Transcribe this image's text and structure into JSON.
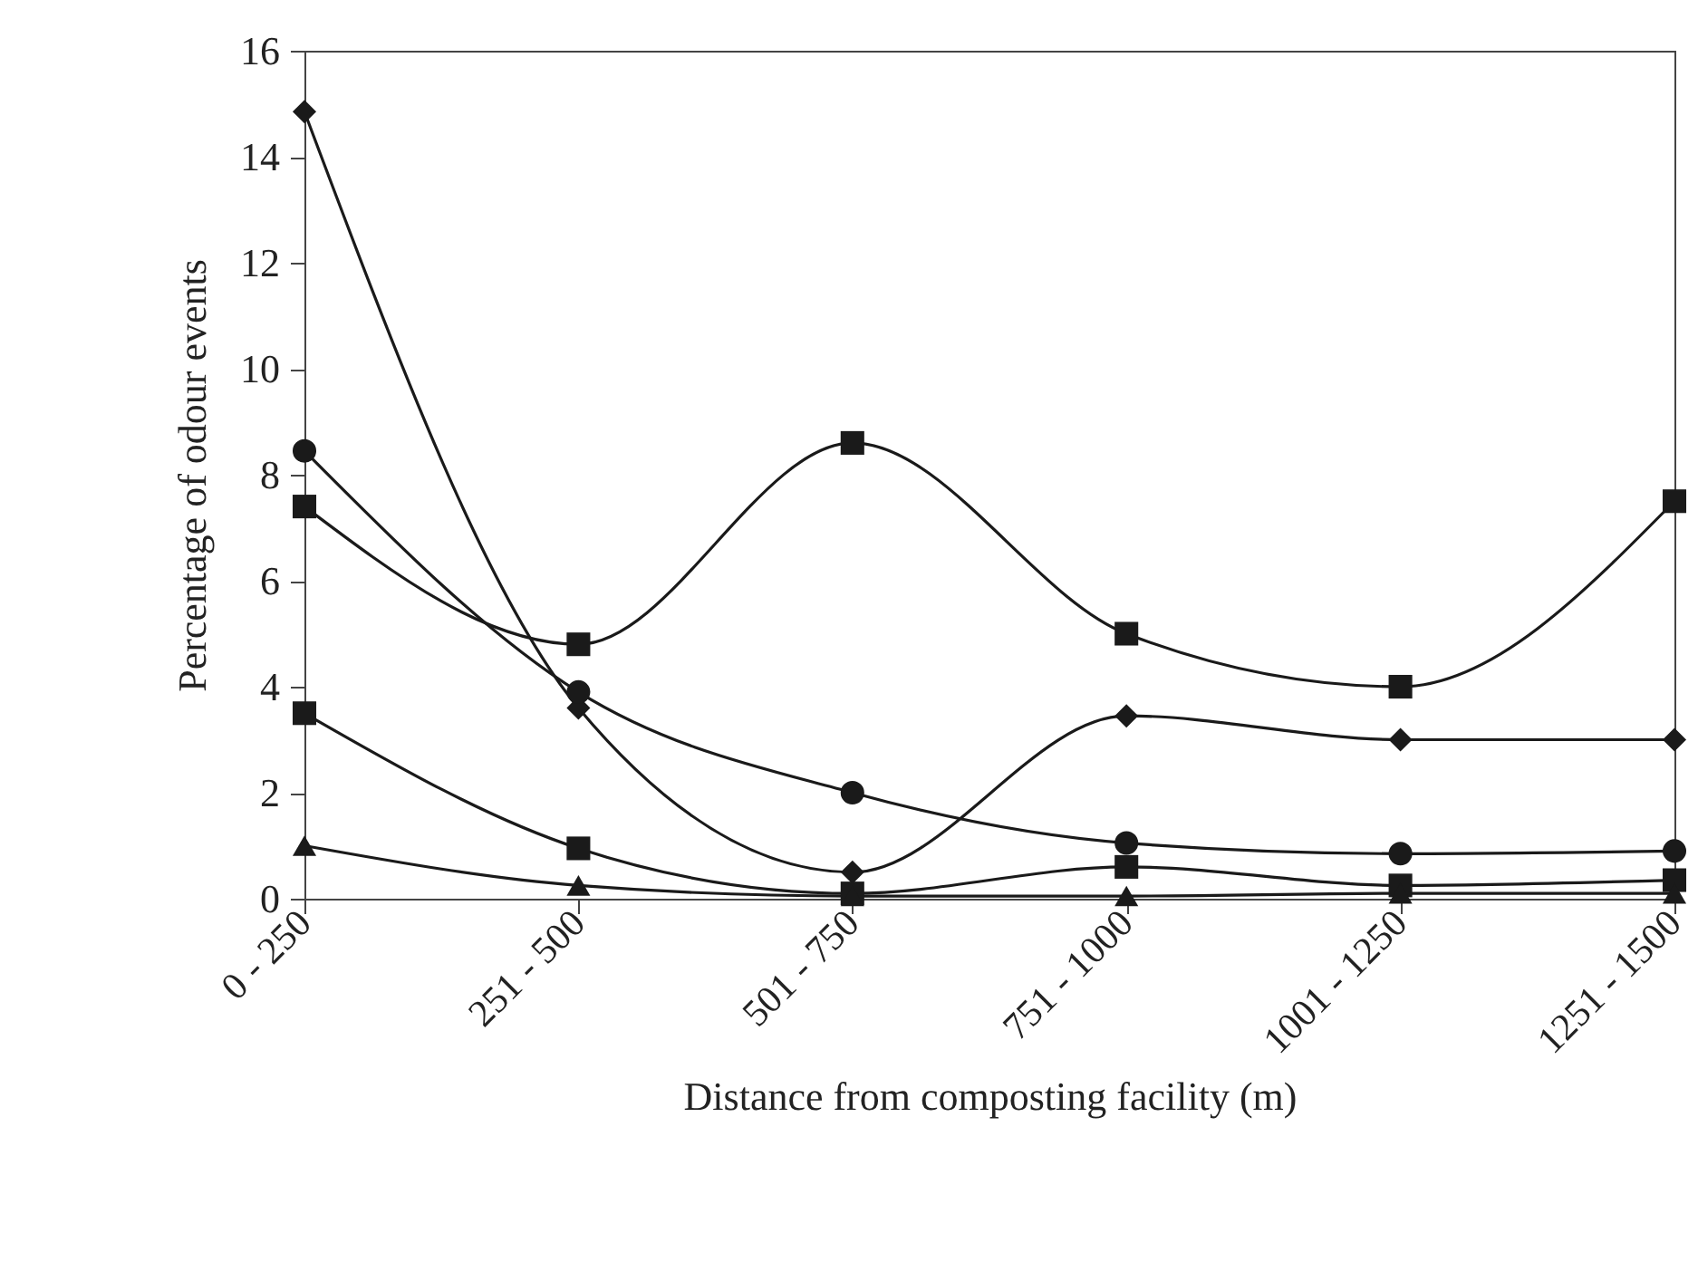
{
  "chart_data": {
    "type": "line",
    "xlabel": "Distance from composting facility (m)",
    "ylabel": "Percentage of odour events",
    "categories": [
      "0 - 250",
      "251 - 500",
      "501 - 750",
      "751 - 1000",
      "1001 - 1250",
      "1251 - 1500"
    ],
    "series": [
      {
        "color": "#1a1a1a",
        "marker": "diamond",
        "values": [
          14.85,
          3.6,
          0.5,
          3.45,
          3.0,
          3.0
        ]
      },
      {
        "color": "#1a1a1a",
        "marker": "square",
        "values": [
          7.4,
          4.8,
          8.6,
          5.0,
          4.0,
          7.5
        ]
      },
      {
        "color": "#1a1a1a",
        "marker": "circle",
        "values": [
          8.45,
          3.9,
          2.0,
          1.05,
          0.85,
          0.9
        ]
      },
      {
        "color": "#1a1a1a",
        "marker": "square",
        "values": [
          3.5,
          0.95,
          0.1,
          0.6,
          0.25,
          0.35
        ]
      },
      {
        "color": "#1a1a1a",
        "marker": "triangle",
        "values": [
          1.0,
          0.25,
          0.05,
          0.05,
          0.1,
          0.1
        ]
      }
    ],
    "ylim": [
      0,
      16
    ],
    "yticks": [
      0,
      2,
      4,
      6,
      8,
      10,
      12,
      14,
      16
    ],
    "grid": false
  }
}
